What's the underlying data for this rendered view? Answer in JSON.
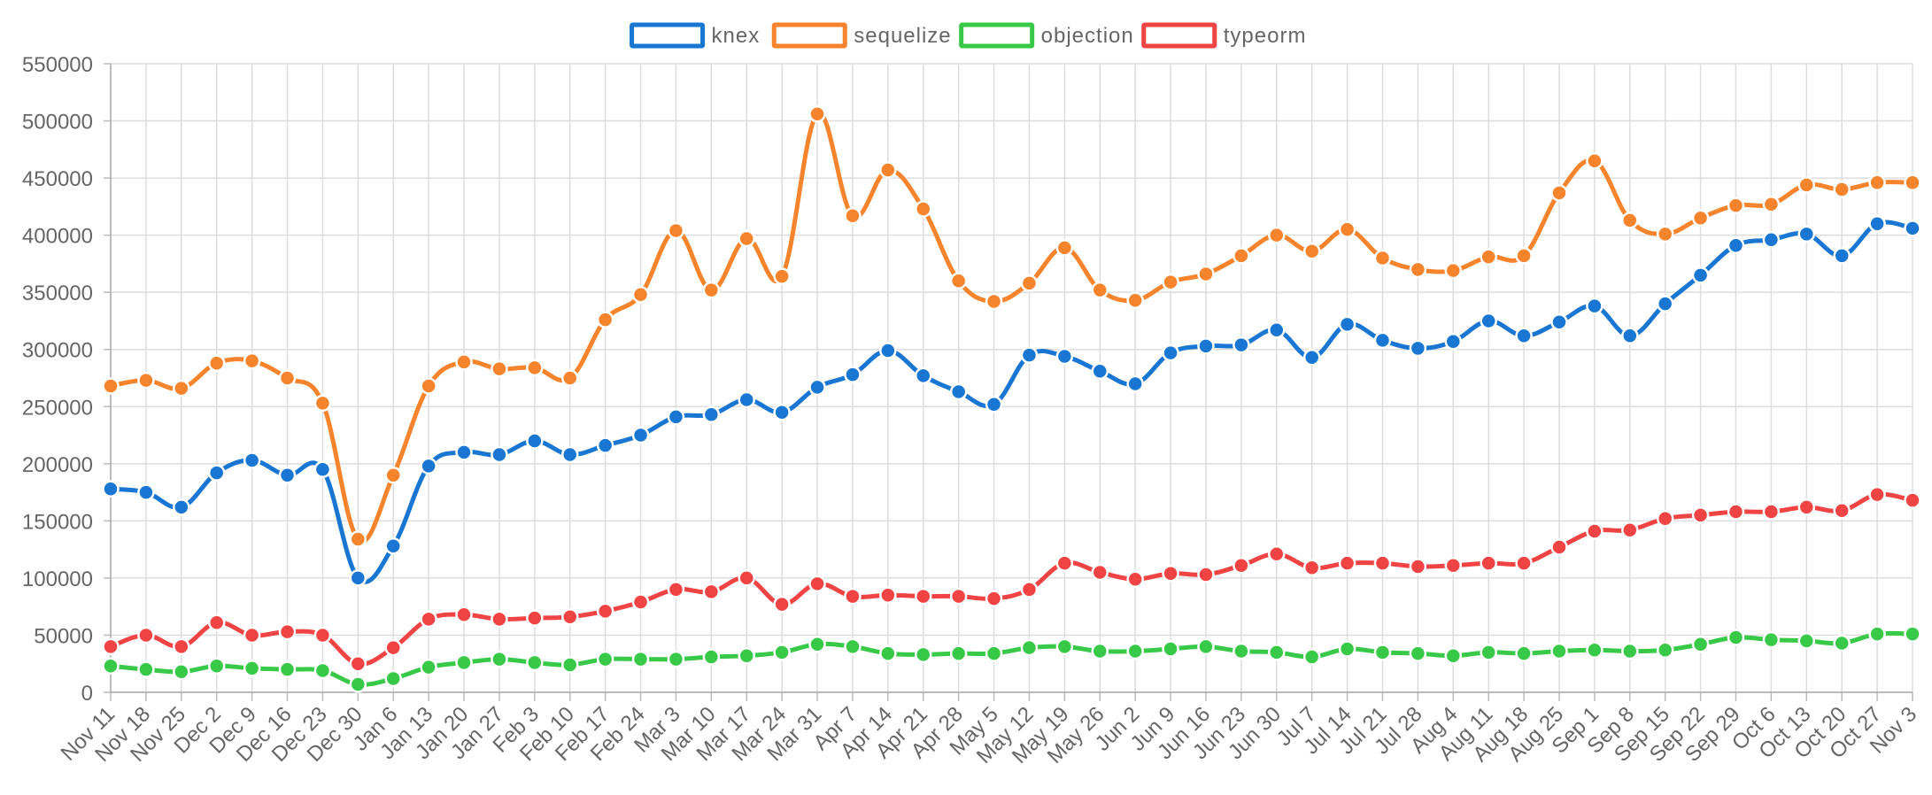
{
  "chart_data": {
    "type": "line",
    "title": "",
    "xlabel": "",
    "ylabel": "",
    "ylim": [
      0,
      550000
    ],
    "yticks": [
      0,
      50000,
      100000,
      150000,
      200000,
      250000,
      300000,
      350000,
      400000,
      450000,
      500000,
      550000
    ],
    "grid": true,
    "legend_position": "top-center",
    "categories": [
      "Nov 11",
      "Nov 18",
      "Nov 25",
      "Dec 2",
      "Dec 9",
      "Dec 16",
      "Dec 23",
      "Dec 30",
      "Jan 6",
      "Jan 13",
      "Jan 20",
      "Jan 27",
      "Feb 3",
      "Feb 10",
      "Feb 17",
      "Feb 24",
      "Mar 3",
      "Mar 10",
      "Mar 17",
      "Mar 24",
      "Mar 31",
      "Apr 7",
      "Apr 14",
      "Apr 21",
      "Apr 28",
      "May 5",
      "May 12",
      "May 19",
      "May 26",
      "Jun 2",
      "Jun 9",
      "Jun 16",
      "Jun 23",
      "Jun 30",
      "Jul 7",
      "Jul 14",
      "Jul 21",
      "Jul 28",
      "Aug 4",
      "Aug 11",
      "Aug 18",
      "Aug 25",
      "Sep 1",
      "Sep 8",
      "Sep 15",
      "Sep 22",
      "Sep 29",
      "Oct 6",
      "Oct 13",
      "Oct 20",
      "Oct 27",
      "Nov 3"
    ],
    "series": [
      {
        "name": "knex",
        "color": "#1976d2",
        "values": [
          178000,
          175000,
          162000,
          192000,
          203000,
          190000,
          195000,
          100000,
          128000,
          198000,
          210000,
          208000,
          220000,
          208000,
          216000,
          225000,
          241000,
          243000,
          256000,
          245000,
          267000,
          278000,
          299000,
          277000,
          263000,
          252000,
          295000,
          294000,
          281000,
          270000,
          297000,
          303000,
          304000,
          317000,
          293000,
          322000,
          308000,
          301000,
          307000,
          325000,
          312000,
          324000,
          338000,
          312000,
          340000,
          365000,
          391000,
          396000,
          401000,
          382000,
          410000,
          406000
        ]
      },
      {
        "name": "sequelize",
        "color": "#f5842c",
        "values": [
          268000,
          273000,
          266000,
          288000,
          290000,
          275000,
          253000,
          134000,
          190000,
          268000,
          289000,
          283000,
          284000,
          275000,
          326000,
          348000,
          404000,
          352000,
          397000,
          364000,
          506000,
          417000,
          457000,
          423000,
          360000,
          342000,
          358000,
          389000,
          352000,
          343000,
          359000,
          366000,
          382000,
          400000,
          386000,
          405000,
          380000,
          370000,
          369000,
          381000,
          382000,
          437000,
          465000,
          413000,
          401000,
          415000,
          426000,
          427000,
          444000,
          440000,
          446000,
          446000
        ]
      },
      {
        "name": "objection",
        "color": "#39c948",
        "values": [
          23000,
          20000,
          18000,
          23000,
          21000,
          20000,
          19000,
          7000,
          12000,
          22000,
          26000,
          29000,
          26000,
          24000,
          29000,
          29000,
          29000,
          31000,
          32000,
          35000,
          42000,
          40000,
          34000,
          33000,
          34000,
          34000,
          39000,
          40000,
          36000,
          36000,
          38000,
          40000,
          36000,
          35000,
          31000,
          38000,
          35000,
          34000,
          32000,
          35000,
          34000,
          36000,
          37000,
          36000,
          37000,
          42000,
          48000,
          46000,
          45000,
          43000,
          51000,
          51000
        ]
      },
      {
        "name": "typeorm",
        "color": "#f04343",
        "values": [
          40000,
          50000,
          40000,
          61000,
          50000,
          53000,
          50000,
          25000,
          39000,
          64000,
          68000,
          64000,
          65000,
          66000,
          71000,
          79000,
          90000,
          88000,
          100000,
          77000,
          95000,
          84000,
          85000,
          84000,
          84000,
          82000,
          90000,
          113000,
          105000,
          99000,
          104000,
          103000,
          111000,
          121000,
          109000,
          113000,
          113000,
          110000,
          111000,
          113000,
          113000,
          127000,
          141000,
          142000,
          152000,
          155000,
          158000,
          158000,
          162000,
          159000,
          173000,
          168000
        ]
      }
    ]
  }
}
